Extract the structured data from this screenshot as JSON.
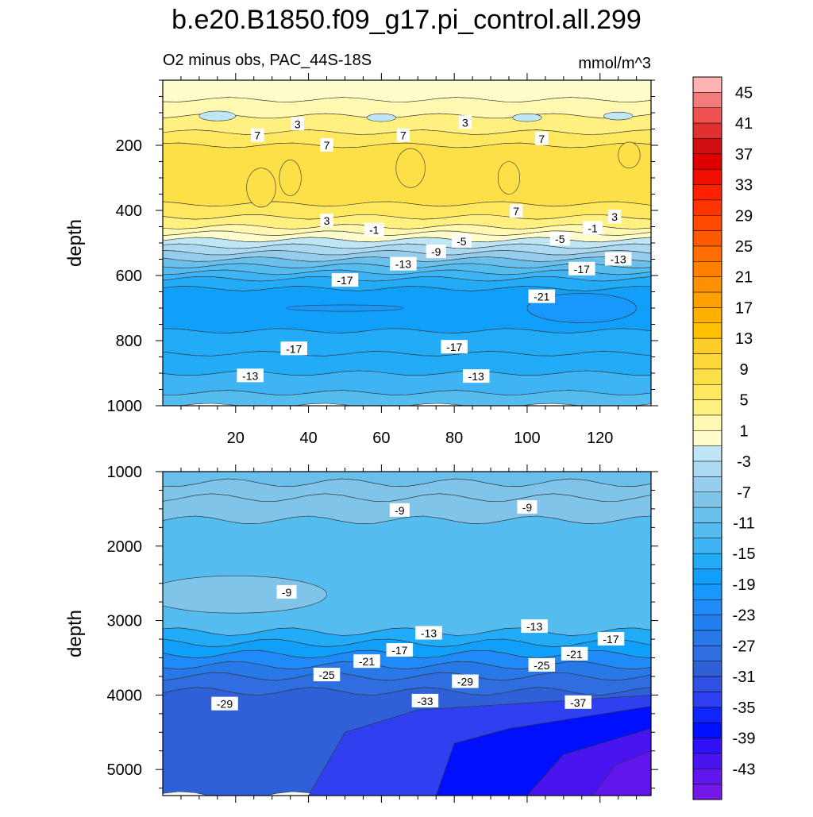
{
  "title": "b.e20.B1850.f09_g17.pi_control.all.299",
  "subtitle_left": "O2 minus obs, PAC_44S-18S",
  "units": "mmol/m^3",
  "chart_data": [
    {
      "type": "contour",
      "panel": "upper",
      "ylabel": "depth",
      "ylim": [
        1000,
        0
      ],
      "xlim": [
        0,
        134
      ],
      "xticks": [
        "20",
        "40",
        "60",
        "80",
        "100",
        "120"
      ],
      "xtick_values": [
        20,
        40,
        60,
        80,
        100,
        120
      ],
      "yticks": [
        "200",
        "400",
        "600",
        "800",
        "1000"
      ],
      "ytick_values": [
        200,
        400,
        600,
        800,
        1000
      ],
      "bands": [
        {
          "depth_top": 0,
          "depth_bottom": 60,
          "value": 1
        },
        {
          "depth_top": 60,
          "depth_bottom": 110,
          "value": 2
        },
        {
          "depth_top": 110,
          "depth_bottom": 160,
          "value": 4
        },
        {
          "depth_top": 160,
          "depth_bottom": 200,
          "value": 6
        },
        {
          "depth_top": 200,
          "depth_bottom": 380,
          "value": 8
        },
        {
          "depth_top": 380,
          "depth_bottom": 420,
          "value": 6
        },
        {
          "depth_top": 420,
          "depth_bottom": 450,
          "value": 4
        },
        {
          "depth_top": 450,
          "depth_bottom": 470,
          "value": 2
        },
        {
          "depth_top": 470,
          "depth_bottom": 490,
          "value": 0
        },
        {
          "depth_top": 490,
          "depth_bottom": 510,
          "value": -2
        },
        {
          "depth_top": 510,
          "depth_bottom": 530,
          "value": -4
        },
        {
          "depth_top": 530,
          "depth_bottom": 550,
          "value": -6
        },
        {
          "depth_top": 550,
          "depth_bottom": 570,
          "value": -9
        },
        {
          "depth_top": 570,
          "depth_bottom": 590,
          "value": -12
        },
        {
          "depth_top": 590,
          "depth_bottom": 610,
          "value": -14
        },
        {
          "depth_top": 610,
          "depth_bottom": 640,
          "value": -16
        },
        {
          "depth_top": 640,
          "depth_bottom": 770,
          "value": -18
        },
        {
          "depth_top": 770,
          "depth_bottom": 840,
          "value": -16
        },
        {
          "depth_top": 840,
          "depth_bottom": 900,
          "value": -15
        },
        {
          "depth_top": 900,
          "depth_bottom": 960,
          "value": -13
        },
        {
          "depth_top": 960,
          "depth_bottom": 1000,
          "value": -11
        }
      ],
      "blobs": [
        {
          "x": 50,
          "depth": 700,
          "rx": 16,
          "rdepth": 10,
          "value": -20
        },
        {
          "x": 115,
          "depth": 700,
          "rx": 15,
          "rdepth": 45,
          "value": -20
        },
        {
          "x": 27,
          "depth": 330,
          "rx": 4,
          "rdepth": 60,
          "value": 9
        },
        {
          "x": 35,
          "depth": 300,
          "rx": 3,
          "rdepth": 55,
          "value": 9
        },
        {
          "x": 68,
          "depth": 270,
          "rx": 4,
          "rdepth": 60,
          "value": 9
        },
        {
          "x": 95,
          "depth": 300,
          "rx": 3,
          "rdepth": 50,
          "value": 9
        },
        {
          "x": 128,
          "depth": 230,
          "rx": 3,
          "rdepth": 40,
          "value": 9
        },
        {
          "x": 15,
          "depth": 110,
          "rx": 5,
          "rdepth": 15,
          "value": -2
        },
        {
          "x": 60,
          "depth": 115,
          "rx": 4,
          "rdepth": 12,
          "value": -2
        },
        {
          "x": 100,
          "depth": 115,
          "rx": 4,
          "rdepth": 12,
          "value": -2
        },
        {
          "x": 125,
          "depth": 110,
          "rx": 4,
          "rdepth": 12,
          "value": -2
        }
      ],
      "labels": [
        {
          "text": "3",
          "x": 37,
          "depth": 135
        },
        {
          "text": "3",
          "x": 83,
          "depth": 130
        },
        {
          "text": "7",
          "x": 26,
          "depth": 170
        },
        {
          "text": "7",
          "x": 45,
          "depth": 200
        },
        {
          "text": "7",
          "x": 66,
          "depth": 170
        },
        {
          "text": "7",
          "x": 104,
          "depth": 180
        },
        {
          "text": "3",
          "x": 45,
          "depth": 432
        },
        {
          "text": "7",
          "x": 97,
          "depth": 403
        },
        {
          "text": "3",
          "x": 124,
          "depth": 420
        },
        {
          "text": "-1",
          "x": 58,
          "depth": 460
        },
        {
          "text": "-1",
          "x": 118,
          "depth": 455
        },
        {
          "text": "-5",
          "x": 82,
          "depth": 495
        },
        {
          "text": "-5",
          "x": 109,
          "depth": 488
        },
        {
          "text": "-9",
          "x": 75,
          "depth": 527
        },
        {
          "text": "-13",
          "x": 66,
          "depth": 565
        },
        {
          "text": "-13",
          "x": 125,
          "depth": 550
        },
        {
          "text": "-17",
          "x": 50,
          "depth": 615
        },
        {
          "text": "-17",
          "x": 115,
          "depth": 580
        },
        {
          "text": "-21",
          "x": 104,
          "depth": 665
        },
        {
          "text": "-17",
          "x": 36,
          "depth": 825
        },
        {
          "text": "-17",
          "x": 80,
          "depth": 820
        },
        {
          "text": "-13",
          "x": 24,
          "depth": 908
        },
        {
          "text": "-13",
          "x": 86,
          "depth": 910
        }
      ]
    },
    {
      "type": "contour",
      "panel": "lower",
      "ylabel": "depth",
      "ylim": [
        5350,
        1000
      ],
      "xlim": [
        0,
        134
      ],
      "yticks": [
        "1000",
        "2000",
        "3000",
        "4000",
        "5000"
      ],
      "ytick_values": [
        1000,
        2000,
        3000,
        4000,
        5000
      ],
      "bands": [
        {
          "depth_top": 1000,
          "depth_bottom": 1150,
          "value": -9
        },
        {
          "depth_top": 1150,
          "depth_bottom": 1350,
          "value": -8
        },
        {
          "depth_top": 1350,
          "depth_bottom": 1650,
          "value": -7
        },
        {
          "depth_top": 1650,
          "depth_bottom": 3150,
          "value": -11
        },
        {
          "depth_top": 3150,
          "depth_bottom": 3300,
          "value": -15
        },
        {
          "depth_top": 3300,
          "depth_bottom": 3450,
          "value": -17
        },
        {
          "depth_top": 3450,
          "depth_bottom": 3600,
          "value": -21
        },
        {
          "depth_top": 3600,
          "depth_bottom": 3750,
          "value": -25
        },
        {
          "depth_top": 3750,
          "depth_bottom": 3950,
          "value": -28
        },
        {
          "depth_top": 3950,
          "depth_bottom": 5350,
          "value": -30
        }
      ],
      "blobs": [
        {
          "x": 20,
          "depth": 2650,
          "rx": 25,
          "rdepth": 250,
          "value": -8
        }
      ],
      "wedges": [
        {
          "points": [
            [
              40,
              5350
            ],
            [
              50,
              4500
            ],
            [
              70,
              4200
            ],
            [
              134,
              4000
            ],
            [
              134,
              5350
            ]
          ],
          "value": -33
        },
        {
          "points": [
            [
              75,
              5350
            ],
            [
              80,
              4650
            ],
            [
              95,
              4450
            ],
            [
              134,
              4150
            ],
            [
              134,
              5350
            ]
          ],
          "value": -37
        },
        {
          "points": [
            [
              100,
              5350
            ],
            [
              110,
              4800
            ],
            [
              134,
              4450
            ],
            [
              134,
              5350
            ]
          ],
          "value": -41
        },
        {
          "points": [
            [
              118,
              5350
            ],
            [
              124,
              4950
            ],
            [
              134,
              4750
            ],
            [
              134,
              5350
            ]
          ],
          "value": -43
        }
      ],
      "labels": [
        {
          "text": "-9",
          "x": 65,
          "depth": 1520
        },
        {
          "text": "-9",
          "x": 100,
          "depth": 1480
        },
        {
          "text": "-9",
          "x": 34,
          "depth": 2620
        },
        {
          "text": "-13",
          "x": 73,
          "depth": 3170
        },
        {
          "text": "-13",
          "x": 102,
          "depth": 3080
        },
        {
          "text": "-17",
          "x": 65,
          "depth": 3400
        },
        {
          "text": "-17",
          "x": 123,
          "depth": 3250
        },
        {
          "text": "-21",
          "x": 56,
          "depth": 3550
        },
        {
          "text": "-21",
          "x": 113,
          "depth": 3450
        },
        {
          "text": "-25",
          "x": 45,
          "depth": 3730
        },
        {
          "text": "-25",
          "x": 104,
          "depth": 3600
        },
        {
          "text": "-29",
          "x": 83,
          "depth": 3820
        },
        {
          "text": "-29",
          "x": 17,
          "depth": 4120
        },
        {
          "text": "-33",
          "x": 72,
          "depth": 4080
        },
        {
          "text": "-37",
          "x": 114,
          "depth": 4100
        }
      ]
    }
  ],
  "colorbar": {
    "labels": [
      "45",
      "41",
      "37",
      "33",
      "29",
      "25",
      "21",
      "17",
      "13",
      "9",
      "5",
      "1",
      "-3",
      "-7",
      "-11",
      "-15",
      "-19",
      "-23",
      "-27",
      "-31",
      "-35",
      "-39",
      "-43"
    ],
    "levels": [
      47,
      45,
      43,
      41,
      39,
      37,
      35,
      33,
      31,
      29,
      27,
      25,
      23,
      21,
      19,
      17,
      15,
      13,
      11,
      9,
      7,
      5,
      3,
      1,
      -1,
      -3,
      -5,
      -7,
      -9,
      -11,
      -13,
      -15,
      -17,
      -19,
      -21,
      -23,
      -25,
      -27,
      -29,
      -31,
      -33,
      -35,
      -37,
      -39,
      -41,
      -43,
      -45
    ],
    "colors": [
      "#ffb3b3",
      "#f57a7a",
      "#ef5050",
      "#e03030",
      "#d01010",
      "#e00000",
      "#f01000",
      "#ff2000",
      "#ff3400",
      "#ff4800",
      "#ff5a00",
      "#ff6e00",
      "#ff8000",
      "#ff9000",
      "#ffa000",
      "#ffb000",
      "#ffc000",
      "#fdcd28",
      "#fdd838",
      "#fde048",
      "#fee860",
      "#fff080",
      "#fff8b0",
      "#fffccc",
      "#c0e6f5",
      "#acd8f0",
      "#96ccec",
      "#80c4ea",
      "#6ac0ec",
      "#54bcef",
      "#3eb4f4",
      "#22acf8",
      "#10a0fb",
      "#1898fc",
      "#1f8af8",
      "#2080f2",
      "#2878e8",
      "#2e6ee0",
      "#3060d8",
      "#3050e4",
      "#2e40f0",
      "#1024fc",
      "#0010ff",
      "#3010f8",
      "#4a14f0",
      "#6016ec",
      "#7418e8"
    ]
  }
}
